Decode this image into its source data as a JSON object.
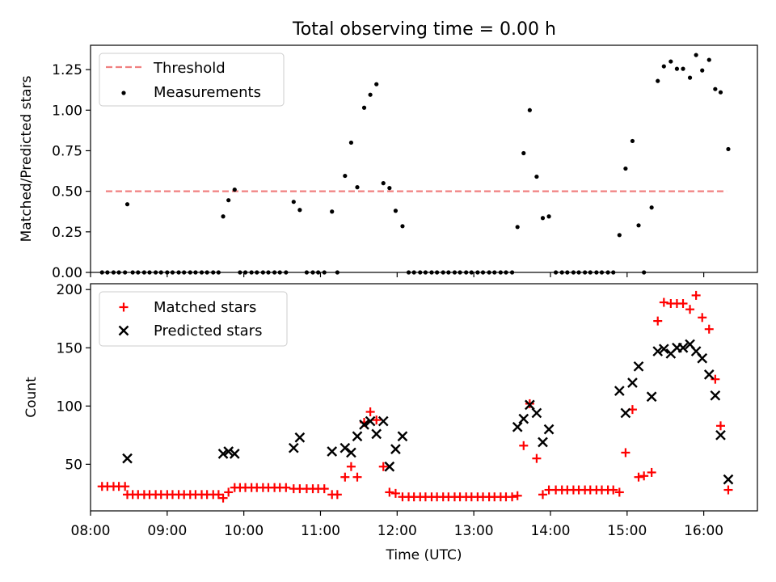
{
  "title": "Total observing time = 0.00 h",
  "colors": {
    "threshold": "#f08080",
    "measurements": "#000000",
    "matched": "#ff0000",
    "predicted": "#000000"
  },
  "chart_data": [
    {
      "type": "scatter",
      "panel": "top",
      "ylabel": "Matched/Predicted stars",
      "xlim": [
        8.0,
        16.7
      ],
      "ylim": [
        0.0,
        1.4
      ],
      "yticks": [
        "0.00",
        "0.25",
        "0.50",
        "0.75",
        "1.00",
        "1.25"
      ],
      "legend_position": "upper-left",
      "threshold": {
        "name": "Threshold",
        "value": 0.5,
        "x_range": [
          8.2,
          16.3
        ]
      },
      "series": [
        {
          "name": "Measurements",
          "points": [
            [
              8.15,
              0
            ],
            [
              8.22,
              0
            ],
            [
              8.3,
              0
            ],
            [
              8.37,
              0
            ],
            [
              8.45,
              0
            ],
            [
              8.48,
              0.42
            ],
            [
              8.55,
              0
            ],
            [
              8.62,
              0
            ],
            [
              8.7,
              0
            ],
            [
              8.77,
              0
            ],
            [
              8.85,
              0
            ],
            [
              8.92,
              0
            ],
            [
              9.0,
              0
            ],
            [
              9.07,
              0
            ],
            [
              9.15,
              0
            ],
            [
              9.22,
              0
            ],
            [
              9.3,
              0
            ],
            [
              9.37,
              0
            ],
            [
              9.45,
              0
            ],
            [
              9.52,
              0
            ],
            [
              9.6,
              0
            ],
            [
              9.67,
              0
            ],
            [
              9.73,
              0.345
            ],
            [
              9.8,
              0.445
            ],
            [
              9.88,
              0.51
            ],
            [
              9.95,
              0
            ],
            [
              10.02,
              0
            ],
            [
              10.1,
              0
            ],
            [
              10.17,
              0
            ],
            [
              10.25,
              0
            ],
            [
              10.32,
              0
            ],
            [
              10.4,
              0
            ],
            [
              10.47,
              0
            ],
            [
              10.55,
              0
            ],
            [
              10.65,
              0.435
            ],
            [
              10.73,
              0.385
            ],
            [
              10.82,
              0
            ],
            [
              10.9,
              0
            ],
            [
              10.97,
              0
            ],
            [
              11.05,
              0
            ],
            [
              11.15,
              0.375
            ],
            [
              11.22,
              0
            ],
            [
              11.32,
              0.595
            ],
            [
              11.4,
              0.8
            ],
            [
              11.48,
              0.525
            ],
            [
              11.57,
              1.015
            ],
            [
              11.65,
              1.095
            ],
            [
              11.73,
              1.16
            ],
            [
              11.82,
              0.55
            ],
            [
              11.9,
              0.52
            ],
            [
              11.98,
              0.38
            ],
            [
              12.07,
              0.285
            ],
            [
              12.15,
              0
            ],
            [
              12.22,
              0
            ],
            [
              12.3,
              0
            ],
            [
              12.37,
              0
            ],
            [
              12.45,
              0
            ],
            [
              12.52,
              0
            ],
            [
              12.6,
              0
            ],
            [
              12.67,
              0
            ],
            [
              12.75,
              0
            ],
            [
              12.82,
              0
            ],
            [
              12.9,
              0
            ],
            [
              12.97,
              0
            ],
            [
              13.05,
              0
            ],
            [
              13.12,
              0
            ],
            [
              13.2,
              0
            ],
            [
              13.27,
              0
            ],
            [
              13.35,
              0
            ],
            [
              13.42,
              0
            ],
            [
              13.5,
              0
            ],
            [
              13.57,
              0.28
            ],
            [
              13.65,
              0.735
            ],
            [
              13.73,
              1.0
            ],
            [
              13.82,
              0.59
            ],
            [
              13.9,
              0.335
            ],
            [
              13.98,
              0.345
            ],
            [
              14.07,
              0
            ],
            [
              14.15,
              0
            ],
            [
              14.22,
              0
            ],
            [
              14.3,
              0
            ],
            [
              14.37,
              0
            ],
            [
              14.45,
              0
            ],
            [
              14.52,
              0
            ],
            [
              14.6,
              0
            ],
            [
              14.67,
              0
            ],
            [
              14.75,
              0
            ],
            [
              14.82,
              0
            ],
            [
              14.9,
              0.23
            ],
            [
              14.98,
              0.64
            ],
            [
              15.07,
              0.81
            ],
            [
              15.15,
              0.29
            ],
            [
              15.22,
              0
            ],
            [
              15.32,
              0.4
            ],
            [
              15.4,
              1.18
            ],
            [
              15.48,
              1.27
            ],
            [
              15.57,
              1.3
            ],
            [
              15.65,
              1.255
            ],
            [
              15.73,
              1.255
            ],
            [
              15.82,
              1.2
            ],
            [
              15.9,
              1.34
            ],
            [
              15.98,
              1.245
            ],
            [
              16.07,
              1.31
            ],
            [
              16.15,
              1.13
            ],
            [
              16.22,
              1.11
            ],
            [
              16.32,
              0.76
            ]
          ]
        }
      ]
    },
    {
      "type": "scatter",
      "panel": "bottom",
      "xlabel": "Time (UTC)",
      "ylabel": "Count",
      "xlim": [
        8.0,
        16.7
      ],
      "ylim": [
        10,
        205
      ],
      "yticks": [
        "50",
        "100",
        "150",
        "200"
      ],
      "xticks": [
        "08:00",
        "09:00",
        "10:00",
        "11:00",
        "12:00",
        "13:00",
        "14:00",
        "15:00",
        "16:00"
      ],
      "legend_position": "upper-left",
      "series": [
        {
          "name": "Matched stars",
          "marker": "plus",
          "points": [
            [
              8.15,
              31
            ],
            [
              8.22,
              31
            ],
            [
              8.3,
              31
            ],
            [
              8.37,
              31
            ],
            [
              8.45,
              31
            ],
            [
              8.48,
              24
            ],
            [
              8.55,
              24
            ],
            [
              8.62,
              24
            ],
            [
              8.7,
              24
            ],
            [
              8.77,
              24
            ],
            [
              8.85,
              24
            ],
            [
              8.92,
              24
            ],
            [
              9.0,
              24
            ],
            [
              9.07,
              24
            ],
            [
              9.15,
              24
            ],
            [
              9.22,
              24
            ],
            [
              9.3,
              24
            ],
            [
              9.37,
              24
            ],
            [
              9.45,
              24
            ],
            [
              9.52,
              24
            ],
            [
              9.6,
              24
            ],
            [
              9.67,
              24
            ],
            [
              9.73,
              21
            ],
            [
              9.8,
              26
            ],
            [
              9.88,
              30
            ],
            [
              9.95,
              30
            ],
            [
              10.02,
              30
            ],
            [
              10.1,
              30
            ],
            [
              10.17,
              30
            ],
            [
              10.25,
              30
            ],
            [
              10.32,
              30
            ],
            [
              10.4,
              30
            ],
            [
              10.47,
              30
            ],
            [
              10.55,
              30
            ],
            [
              10.65,
              29
            ],
            [
              10.73,
              29
            ],
            [
              10.82,
              29
            ],
            [
              10.9,
              29
            ],
            [
              10.97,
              29
            ],
            [
              11.05,
              29
            ],
            [
              11.15,
              24
            ],
            [
              11.22,
              24
            ],
            [
              11.32,
              39
            ],
            [
              11.4,
              48
            ],
            [
              11.48,
              39
            ],
            [
              11.57,
              86
            ],
            [
              11.65,
              95
            ],
            [
              11.73,
              88
            ],
            [
              11.82,
              48
            ],
            [
              11.9,
              26
            ],
            [
              11.98,
              25
            ],
            [
              12.07,
              22
            ],
            [
              12.15,
              22
            ],
            [
              12.22,
              22
            ],
            [
              12.3,
              22
            ],
            [
              12.37,
              22
            ],
            [
              12.45,
              22
            ],
            [
              12.52,
              22
            ],
            [
              12.6,
              22
            ],
            [
              12.67,
              22
            ],
            [
              12.75,
              22
            ],
            [
              12.82,
              22
            ],
            [
              12.9,
              22
            ],
            [
              12.97,
              22
            ],
            [
              13.05,
              22
            ],
            [
              13.12,
              22
            ],
            [
              13.2,
              22
            ],
            [
              13.27,
              22
            ],
            [
              13.35,
              22
            ],
            [
              13.42,
              22
            ],
            [
              13.5,
              22
            ],
            [
              13.57,
              23
            ],
            [
              13.65,
              66
            ],
            [
              13.73,
              102
            ],
            [
              13.82,
              55
            ],
            [
              13.9,
              24
            ],
            [
              13.98,
              28
            ],
            [
              14.07,
              28
            ],
            [
              14.15,
              28
            ],
            [
              14.22,
              28
            ],
            [
              14.3,
              28
            ],
            [
              14.37,
              28
            ],
            [
              14.45,
              28
            ],
            [
              14.52,
              28
            ],
            [
              14.6,
              28
            ],
            [
              14.67,
              28
            ],
            [
              14.75,
              28
            ],
            [
              14.82,
              28
            ],
            [
              14.9,
              26
            ],
            [
              14.98,
              60
            ],
            [
              15.07,
              97
            ],
            [
              15.15,
              39
            ],
            [
              15.22,
              40
            ],
            [
              15.32,
              43
            ],
            [
              15.4,
              173
            ],
            [
              15.48,
              189
            ],
            [
              15.57,
              188
            ],
            [
              15.65,
              188
            ],
            [
              15.73,
              188
            ],
            [
              15.82,
              183
            ],
            [
              15.9,
              195
            ],
            [
              15.98,
              176
            ],
            [
              16.07,
              166
            ],
            [
              16.15,
              123
            ],
            [
              16.22,
              83
            ],
            [
              16.32,
              28
            ]
          ]
        },
        {
          "name": "Predicted stars",
          "marker": "x",
          "points": [
            [
              8.48,
              55
            ],
            [
              9.73,
              59
            ],
            [
              9.8,
              61
            ],
            [
              9.88,
              59
            ],
            [
              10.65,
              64
            ],
            [
              10.73,
              73
            ],
            [
              11.15,
              61
            ],
            [
              11.32,
              64
            ],
            [
              11.4,
              60
            ],
            [
              11.48,
              74
            ],
            [
              11.57,
              84
            ],
            [
              11.65,
              87
            ],
            [
              11.73,
              76
            ],
            [
              11.82,
              87
            ],
            [
              11.9,
              48
            ],
            [
              11.98,
              63
            ],
            [
              12.07,
              74
            ],
            [
              13.57,
              82
            ],
            [
              13.65,
              89
            ],
            [
              13.73,
              101
            ],
            [
              13.82,
              94
            ],
            [
              13.9,
              69
            ],
            [
              13.98,
              80
            ],
            [
              14.9,
              113
            ],
            [
              14.98,
              94
            ],
            [
              15.07,
              120
            ],
            [
              15.15,
              134
            ],
            [
              15.32,
              108
            ],
            [
              15.4,
              147
            ],
            [
              15.48,
              149
            ],
            [
              15.57,
              145
            ],
            [
              15.65,
              150
            ],
            [
              15.73,
              150
            ],
            [
              15.82,
              153
            ],
            [
              15.9,
              147
            ],
            [
              15.98,
              141
            ],
            [
              16.07,
              127
            ],
            [
              16.15,
              109
            ],
            [
              16.22,
              75
            ],
            [
              16.32,
              37
            ]
          ]
        }
      ]
    }
  ]
}
